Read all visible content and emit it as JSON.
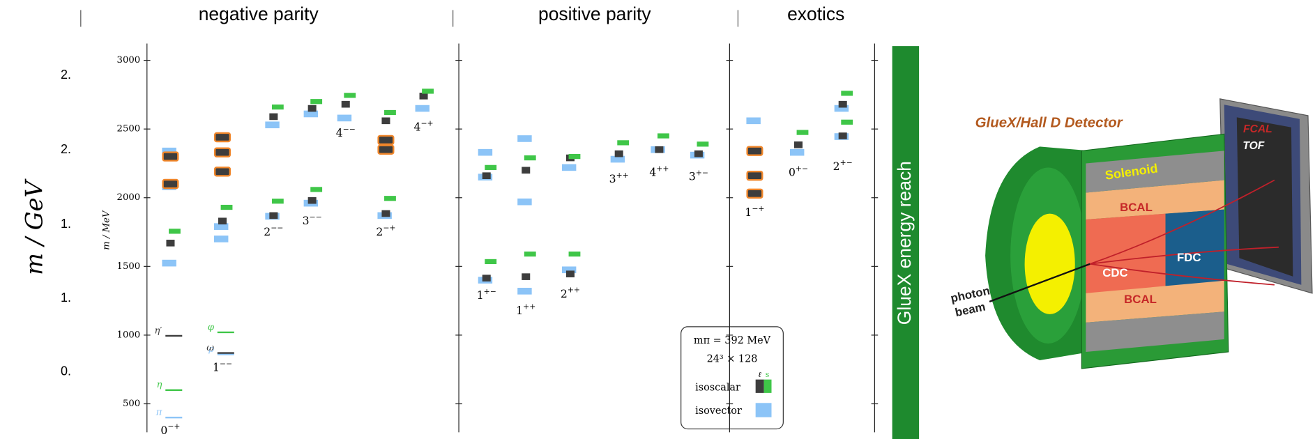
{
  "headers": [
    "negative parity",
    "positive parity",
    "exotics"
  ],
  "outer_axis": {
    "label": "m / GeV",
    "ticks": [
      "2.",
      "2.",
      "1.",
      "1.",
      "0."
    ]
  },
  "chart_data": {
    "type": "spectrum",
    "ylabel": "m / MeV",
    "ylim": [
      300,
      3100
    ],
    "yticks": [
      500,
      1000,
      1500,
      2000,
      2500,
      3000
    ],
    "colors": {
      "isovector": "#8cc4f7",
      "isoscalar_light": "#3d3d3d",
      "isoscalar_strange": "#3fc648",
      "highlight": "#f0862a"
    },
    "panels": [
      {
        "columns": [
          {
            "J": "0",
            "PC": "−+",
            "isovector": [
              1524,
              2340,
              2080
            ],
            "isoscalar_light": [
              1670
            ],
            "isoscalar_strange": [
              1756
            ],
            "highlighted": [
              2300,
              2100
            ],
            "named": [
              {
                "name": "π",
                "mass": 400,
                "kind": "isovector"
              },
              {
                "name": "η",
                "mass": 600,
                "kind": "isoscalar_strange"
              },
              {
                "name": "η′",
                "mass": 995,
                "kind": "isoscalar_light"
              }
            ]
          },
          {
            "J": "1",
            "PC": "−−",
            "isovector": [
              1700,
              1790
            ],
            "isoscalar_light": [
              1830
            ],
            "isoscalar_strange": [
              1930
            ],
            "highlighted": [
              2190,
              2330,
              2440
            ],
            "named": [
              {
                "name": "ρ",
                "mass": 860,
                "kind": "isovector"
              },
              {
                "name": "ω",
                "mass": 870,
                "kind": "isoscalar_light"
              },
              {
                "name": "φ",
                "mass": 1020,
                "kind": "isoscalar_strange"
              }
            ]
          },
          {
            "J": "2",
            "PC": "−−",
            "isovector": [
              1865,
              2530
            ],
            "isoscalar_light": [
              1870,
              2590
            ],
            "isoscalar_strange": [
              1975,
              2660
            ]
          },
          {
            "J": "3",
            "PC": "−−",
            "isovector": [
              1960,
              2610
            ],
            "isoscalar_light": [
              1980,
              2650
            ],
            "isoscalar_strange": [
              2060,
              2700
            ]
          },
          {
            "J": "4",
            "PC": "−−",
            "isovector": [
              2580
            ],
            "isoscalar_light": [
              2680
            ],
            "isoscalar_strange": [
              2745
            ]
          },
          {
            "J": "2",
            "PC": "−+",
            "isovector": [
              1870
            ],
            "isoscalar_light": [
              1885,
              2560
            ],
            "isoscalar_strange": [
              1995,
              2620
            ],
            "highlighted": [
              2350,
              2420
            ]
          },
          {
            "J": "4",
            "PC": "−+",
            "isovector": [
              2650
            ],
            "isoscalar_light": [
              2740
            ],
            "isoscalar_strange": [
              2775
            ]
          }
        ]
      },
      {
        "columns": [
          {
            "J": "1",
            "PC": "+−",
            "isovector": [
              1400,
              2150,
              2330
            ],
            "isoscalar_light": [
              1415,
              2160
            ],
            "isoscalar_strange": [
              1535,
              2220
            ]
          },
          {
            "J": "1",
            "PC": "++",
            "isovector": [
              1320,
              1970,
              2430
            ],
            "isoscalar_light": [
              1425,
              2200
            ],
            "isoscalar_strange": [
              1590,
              2290
            ]
          },
          {
            "J": "2",
            "PC": "++",
            "isovector": [
              1475,
              2220
            ],
            "isoscalar_light": [
              1445,
              2290
            ],
            "isoscalar_strange": [
              1590,
              2300
            ]
          },
          {
            "J": "3",
            "PC": "++",
            "isovector": [
              2280
            ],
            "isoscalar_light": [
              2320
            ],
            "isoscalar_strange": [
              2400
            ]
          },
          {
            "J": "4",
            "PC": "++",
            "isovector": [
              2350
            ],
            "isoscalar_light": [
              2350
            ],
            "isoscalar_strange": [
              2450
            ]
          },
          {
            "J": "3",
            "PC": "+−",
            "isovector": [
              2310
            ],
            "isoscalar_light": [
              2320
            ],
            "isoscalar_strange": [
              2390
            ]
          }
        ]
      },
      {
        "columns": [
          {
            "J": "1",
            "PC": "−+",
            "isovector": [
              2560
            ],
            "highlighted": [
              2030,
              2160,
              2340
            ]
          },
          {
            "J": "0",
            "PC": "+−",
            "isovector": [
              2330
            ],
            "isoscalar_light": [
              2385
            ],
            "isoscalar_strange": [
              2475
            ]
          },
          {
            "J": "2",
            "PC": "+−",
            "isovector": [
              2445,
              2650
            ],
            "isoscalar_light": [
              2450,
              2680
            ],
            "isoscalar_strange": [
              2550,
              2760
            ]
          }
        ]
      }
    ],
    "legend": {
      "lines": [
        "mπ = 392 MeV",
        "24³ × 128"
      ],
      "flavors": [
        "ℓ",
        "s"
      ],
      "isoscalar": "isoscalar",
      "isovector": "isovector"
    }
  },
  "energy_reach": "GlueX energy reach",
  "detector": {
    "title": "GlueX/Hall D Detector",
    "parts": [
      "Solenoid",
      "BCAL",
      "BCAL",
      "CDC",
      "FDC",
      "FCAL",
      "TOF"
    ],
    "beam": [
      "photon",
      "beam"
    ]
  }
}
